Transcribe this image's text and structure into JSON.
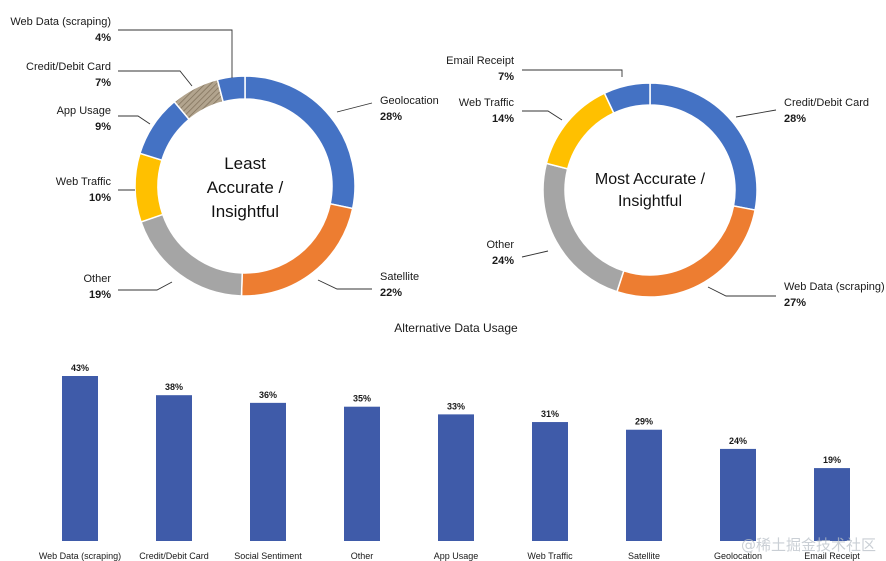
{
  "chart_data": [
    {
      "type": "pie",
      "variant": "donut",
      "center_label": [
        "Least",
        "Accurate /",
        "Insightful"
      ],
      "slices": [
        {
          "label": "Geolocation",
          "value": 28,
          "value_label": "28%",
          "color": "#4472C4"
        },
        {
          "label": "Satellite",
          "value": 22,
          "value_label": "22%",
          "color": "#ED7D31"
        },
        {
          "label": "Other",
          "value": 19,
          "value_label": "19%",
          "color": "#A5A5A5"
        },
        {
          "label": "Web Traffic",
          "value": 10,
          "value_label": "10%",
          "color": "#FFC000"
        },
        {
          "label": "App Usage",
          "value": 9,
          "value_label": "9%",
          "color": "#4472C4"
        },
        {
          "label": "Credit/Debit Card",
          "value": 7,
          "value_label": "7%",
          "color": "#9E8E76"
        },
        {
          "label": "Web Data (scraping)",
          "value": 4,
          "value_label": "4%",
          "color": "#4472C4"
        }
      ]
    },
    {
      "type": "pie",
      "variant": "donut",
      "center_label": [
        "Most Accurate /",
        "Insightful"
      ],
      "slices": [
        {
          "label": "Credit/Debit Card",
          "value": 28,
          "value_label": "28%",
          "color": "#4472C4"
        },
        {
          "label": "Web Data (scraping)",
          "value": 27,
          "value_label": "27%",
          "color": "#ED7D31"
        },
        {
          "label": "Other",
          "value": 24,
          "value_label": "24%",
          "color": "#A5A5A5"
        },
        {
          "label": "Web Traffic",
          "value": 14,
          "value_label": "14%",
          "color": "#FFC000"
        },
        {
          "label": "Email Receipt",
          "value": 7,
          "value_label": "7%",
          "color": "#4472C4"
        }
      ]
    },
    {
      "type": "bar",
      "title": "Alternative Data Usage",
      "categories": [
        "Web Data (scraping)",
        "Credit/Debit Card",
        "Social Sentiment",
        "Other",
        "App Usage",
        "Web Traffic",
        "Satellite",
        "Geolocation",
        "Email Receipt"
      ],
      "values": [
        43,
        38,
        36,
        35,
        33,
        31,
        29,
        24,
        19
      ],
      "value_labels": [
        "43%",
        "38%",
        "36%",
        "35%",
        "33%",
        "31%",
        "29%",
        "24%",
        "19%"
      ],
      "color": "#3F5BA9",
      "grid": false
    }
  ],
  "watermark": "@稀土掘金技术社区"
}
